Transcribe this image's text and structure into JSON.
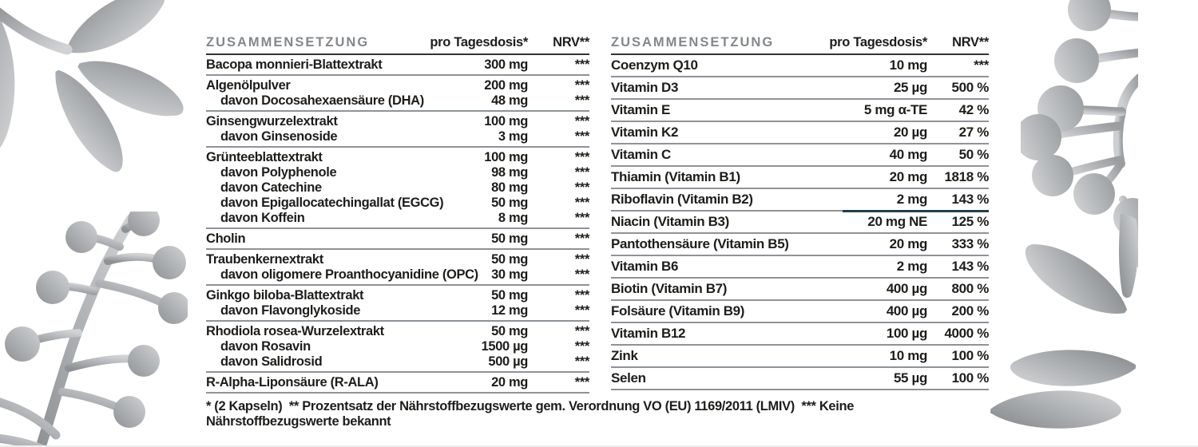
{
  "footnote": {
    "text": "* (2 Kapseln)  ** Prozentsatz der Nährstoffbezugswerte gem. Verordnung VO (EU) 1169/2011 (LMIV)  *** Keine Nährstoffbezugswerte bekannt"
  },
  "colors": {
    "background": "#ffffff",
    "body_text": "#1d1d1b",
    "header_text": "#84888b",
    "header_rule": "#303437",
    "row_rule": "#8e9397",
    "accent_line": "#21404b",
    "decoration_dark": "#8f9295",
    "decoration_light": "#d0d2d4"
  },
  "decorations": [
    {
      "name": "botanical-leaves-decoration-top-left"
    },
    {
      "name": "botanical-berry-branch-decoration-bottom-left"
    },
    {
      "name": "botanical-berry-branch-decoration-top-right"
    },
    {
      "name": "botanical-leaves-decoration-bottom-right"
    }
  ],
  "left_table": {
    "headers": {
      "composition": "ZUSAMMENSETZUNG",
      "per_dose": "pro Tagesdosis*",
      "nrv": "NRV**"
    },
    "groups": [
      {
        "rows": [
          {
            "label": "Bacopa monnieri-Blattextrakt",
            "amount": "300 mg",
            "nrv": "***",
            "indent": false
          }
        ]
      },
      {
        "rows": [
          {
            "label": "Algenölpulver",
            "amount": "200 mg",
            "nrv": "***",
            "indent": false
          },
          {
            "label": "davon Docosahexaensäure (DHA)",
            "amount": "48 mg",
            "nrv": "***",
            "indent": true
          }
        ]
      },
      {
        "rows": [
          {
            "label": "Ginsengwurzelextrakt",
            "amount": "100 mg",
            "nrv": "***",
            "indent": false
          },
          {
            "label": "davon Ginsenoside",
            "amount": "3 mg",
            "nrv": "***",
            "indent": true
          }
        ]
      },
      {
        "rows": [
          {
            "label": "Grünteeblattextrakt",
            "amount": "100 mg",
            "nrv": "***",
            "indent": false
          },
          {
            "label": "davon Polyphenole",
            "amount": "98 mg",
            "nrv": "***",
            "indent": true
          },
          {
            "label": "davon Catechine",
            "amount": "80 mg",
            "nrv": "***",
            "indent": true
          },
          {
            "label": "davon Epigallocatechingallat (EGCG)",
            "amount": "50 mg",
            "nrv": "***",
            "indent": true
          },
          {
            "label": "davon Koffein",
            "amount": "8 mg",
            "nrv": "***",
            "indent": true
          }
        ]
      },
      {
        "rows": [
          {
            "label": "Cholin",
            "amount": "50 mg",
            "nrv": "***",
            "indent": false
          }
        ]
      },
      {
        "rows": [
          {
            "label": "Traubenkernextrakt",
            "amount": "50 mg",
            "nrv": "***",
            "indent": false
          },
          {
            "label": "davon oligomere Proanthocyanidine (OPC)",
            "amount": "30 mg",
            "nrv": "***",
            "indent": true
          }
        ]
      },
      {
        "rows": [
          {
            "label": "Ginkgo biloba-Blattextrakt",
            "amount": "50 mg",
            "nrv": "***",
            "indent": false
          },
          {
            "label": "davon Flavonglykoside",
            "amount": "12 mg",
            "nrv": "***",
            "indent": true
          }
        ]
      },
      {
        "rows": [
          {
            "label": "Rhodiola rosea-Wurzelextrakt",
            "amount": "50 mg",
            "nrv": "***",
            "indent": false
          },
          {
            "label": "davon Rosavin",
            "amount": "1500 µg",
            "nrv": "***",
            "indent": true
          },
          {
            "label": "davon Salidrosid",
            "amount": "500 µg",
            "nrv": "***",
            "indent": true
          }
        ]
      },
      {
        "rows": [
          {
            "label": "R-Alpha-Liponsäure (R-ALA)",
            "amount": "20 mg",
            "nrv": "***",
            "indent": false
          }
        ]
      }
    ]
  },
  "right_table": {
    "headers": {
      "composition": "ZUSAMMENSETZUNG",
      "per_dose": "pro Tagesdosis*",
      "nrv": "NRV**"
    },
    "groups": [
      {
        "rows": [
          {
            "label": "Coenzym Q10",
            "amount": "10 mg",
            "nrv": "***",
            "indent": false
          }
        ]
      },
      {
        "rows": [
          {
            "label": "Vitamin D3",
            "amount": "25 µg",
            "nrv": "500 %",
            "indent": false
          }
        ]
      },
      {
        "rows": [
          {
            "label": "Vitamin E",
            "amount": "5 mg α-TE",
            "nrv": "42 %",
            "indent": false
          }
        ]
      },
      {
        "rows": [
          {
            "label": "Vitamin K2",
            "amount": "20 µg",
            "nrv": "27 %",
            "indent": false
          }
        ]
      },
      {
        "rows": [
          {
            "label": "Vitamin C",
            "amount": "40 mg",
            "nrv": "50 %",
            "indent": false
          }
        ]
      },
      {
        "rows": [
          {
            "label": "Thiamin (Vitamin B1)",
            "amount": "20 mg",
            "nrv": "1818 %",
            "indent": false
          }
        ]
      },
      {
        "accent": true,
        "rows": [
          {
            "label": "Riboflavin (Vitamin B2)",
            "amount": "2 mg",
            "nrv": "143 %",
            "indent": false
          }
        ]
      },
      {
        "rows": [
          {
            "label": "Niacin (Vitamin B3)",
            "amount": "20 mg NE",
            "nrv": "125 %",
            "indent": false
          }
        ]
      },
      {
        "rows": [
          {
            "label": "Pantothensäure (Vitamin B5)",
            "amount": "20 mg",
            "nrv": "333 %",
            "indent": false
          }
        ]
      },
      {
        "rows": [
          {
            "label": "Vitamin B6",
            "amount": "2 mg",
            "nrv": "143 %",
            "indent": false
          }
        ]
      },
      {
        "rows": [
          {
            "label": "Biotin (Vitamin B7)",
            "amount": "400 µg",
            "nrv": "800 %",
            "indent": false
          }
        ]
      },
      {
        "rows": [
          {
            "label": "Folsäure (Vitamin B9)",
            "amount": "400 µg",
            "nrv": "200 %",
            "indent": false
          }
        ]
      },
      {
        "rows": [
          {
            "label": "Vitamin B12",
            "amount": "100 µg",
            "nrv": "4000 %",
            "indent": false
          }
        ]
      },
      {
        "rows": [
          {
            "label": "Zink",
            "amount": "10 mg",
            "nrv": "100 %",
            "indent": false
          }
        ]
      },
      {
        "rows": [
          {
            "label": "Selen",
            "amount": "55 µg",
            "nrv": "100 %",
            "indent": false
          }
        ]
      }
    ]
  }
}
